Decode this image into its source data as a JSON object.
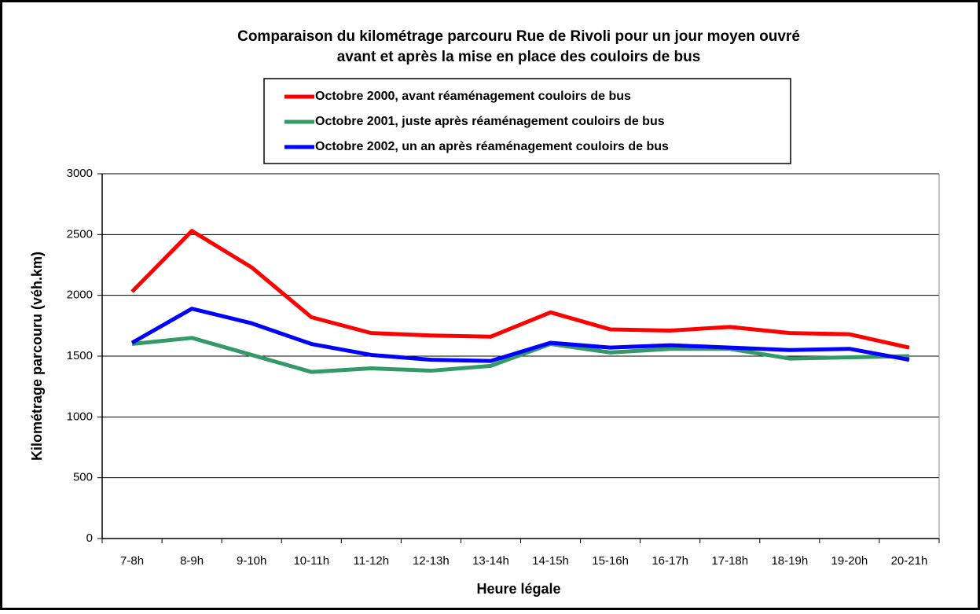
{
  "chart_data": {
    "type": "line",
    "title": [
      "Comparaison du kilométrage parcouru Rue de Rivoli pour un jour moyen ouvré",
      "avant et après la mise en place des couloirs de bus"
    ],
    "x_label": "Heure légale",
    "y_label": "Kilométrage parcouru (véh.km)",
    "categories": [
      "7-8h",
      "8-9h",
      "9-10h",
      "10-11h",
      "11-12h",
      "12-13h",
      "13-14h",
      "14-15h",
      "15-16h",
      "16-17h",
      "17-18h",
      "18-19h",
      "19-20h",
      "20-21h"
    ],
    "series": [
      {
        "name": "Octobre 2000, avant réaménagement couloirs de bus",
        "color": "#ff0000",
        "values": [
          2030,
          2530,
          2230,
          1820,
          1690,
          1670,
          1660,
          1860,
          1720,
          1710,
          1740,
          1690,
          1680,
          1570
        ]
      },
      {
        "name": "Octobre 2001, juste après réaménagement couloirs de bus",
        "color": "#339966",
        "values": [
          1600,
          1650,
          1510,
          1370,
          1400,
          1380,
          1420,
          1600,
          1530,
          1560,
          1560,
          1480,
          1490,
          1500
        ]
      },
      {
        "name": "Octobre 2002, un an après réaménagement couloirs de bus",
        "color": "#0000ff",
        "values": [
          1610,
          1890,
          1770,
          1600,
          1510,
          1470,
          1460,
          1610,
          1570,
          1590,
          1570,
          1550,
          1560,
          1470
        ]
      }
    ],
    "ylim": [
      0,
      3000
    ],
    "yticks": [
      0,
      500,
      1000,
      1500,
      2000,
      2500,
      3000
    ],
    "grid": true,
    "legend": "top"
  }
}
